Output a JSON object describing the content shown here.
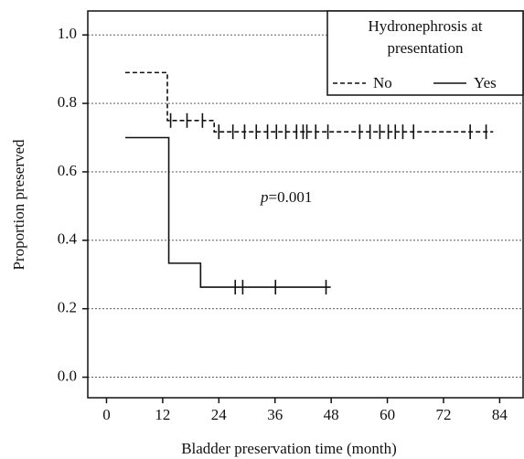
{
  "chart_data": {
    "type": "step",
    "x_label": "Bladder preservation time (month)",
    "y_label": "Proportion preserved",
    "xlim": [
      -4,
      89
    ],
    "xticks": [
      0,
      12,
      24,
      36,
      48,
      60,
      72,
      84
    ],
    "ylim": [
      -0.06,
      1.07
    ],
    "yticks": [
      {
        "value": 0,
        "label": "0.0"
      },
      {
        "value": 0.2,
        "label": "0.2"
      },
      {
        "value": 0.4,
        "label": "0.4"
      },
      {
        "value": 0.6,
        "label": "0.6"
      },
      {
        "value": 0.8,
        "label": "0.8"
      },
      {
        "value": 1,
        "label": "1.0"
      }
    ],
    "grid": true,
    "legend_title": [
      "Hydronephrosis at",
      "presentation"
    ],
    "annotation": [
      "p",
      "=0.001"
    ],
    "series": [
      {
        "name": "No",
        "color": "#111111",
        "dashed": true,
        "x": [
          4,
          13,
          23,
          82.6
        ],
        "values": [
          0.89,
          0.75,
          0.717,
          0.717
        ],
        "censor_x": [
          13.7,
          17.2,
          20.5,
          24.0,
          27.0,
          29.5,
          32.0,
          34.4,
          36.3,
          38.3,
          40.6,
          42.0,
          42.8,
          44.7,
          47.3,
          54.1,
          56.3,
          58.4,
          60.2,
          61.7,
          63.3,
          65.6,
          77.7,
          81.1
        ],
        "censor_values": [
          0.75,
          0.75,
          0.75,
          0.717,
          0.717,
          0.717,
          0.717,
          0.717,
          0.717,
          0.717,
          0.717,
          0.717,
          0.717,
          0.717,
          0.717,
          0.717,
          0.717,
          0.717,
          0.717,
          0.717,
          0.717,
          0.717,
          0.717,
          0.717
        ]
      },
      {
        "name": "Yes",
        "color": "#111111",
        "dashed": false,
        "x": [
          4,
          13.3,
          20.1,
          47.9
        ],
        "values": [
          0.7,
          0.333,
          0.263,
          0.263
        ],
        "censor_x": [
          27.5,
          29.1,
          36.1,
          46.9
        ],
        "censor_values": [
          0.263,
          0.263,
          0.263,
          0.263
        ]
      }
    ]
  }
}
